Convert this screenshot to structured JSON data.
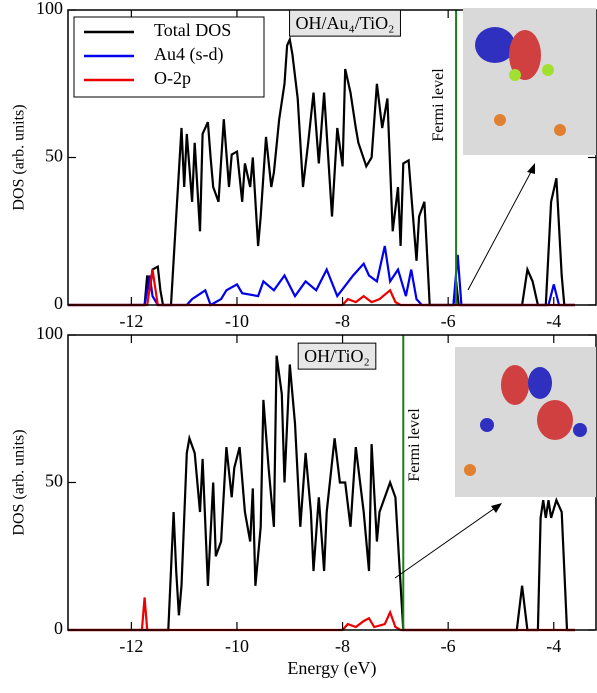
{
  "chart_data": [
    {
      "type": "line",
      "ylabel": "DOS (arb. units)",
      "annotation": "OH/Au₄/TiO₂",
      "fermi_level": -5.85,
      "fermi_label": "Fermi level",
      "fermi_color": "#1a7f1a",
      "xlim": [
        -13.2,
        -3.2
      ],
      "xticks": [
        -12,
        -10,
        -8,
        -6,
        -4
      ],
      "ylim": [
        0,
        100
      ],
      "yticks": [
        0,
        50,
        100
      ],
      "legend": "upper left",
      "series": [
        {
          "name": "Total DOS",
          "color": "#000000",
          "x": [
            -13.2,
            -11.8,
            -11.75,
            -11.7,
            -11.65,
            -11.6,
            -11.5,
            -11.45,
            -11.4,
            -11.25,
            -11.15,
            -11.05,
            -11.0,
            -10.95,
            -10.85,
            -10.8,
            -10.7,
            -10.65,
            -10.55,
            -10.5,
            -10.45,
            -10.35,
            -10.25,
            -10.15,
            -10.1,
            -10.0,
            -9.9,
            -9.85,
            -9.75,
            -9.7,
            -9.6,
            -9.55,
            -9.45,
            -9.35,
            -9.3,
            -9.2,
            -9.1,
            -9.05,
            -9.0,
            -8.95,
            -8.85,
            -8.75,
            -8.65,
            -8.55,
            -8.45,
            -8.35,
            -8.2,
            -8.1,
            -8.0,
            -7.95,
            -7.85,
            -7.75,
            -7.7,
            -7.55,
            -7.45,
            -7.35,
            -7.25,
            -7.15,
            -7.05,
            -6.95,
            -6.9,
            -6.85,
            -6.75,
            -6.6,
            -6.55,
            -6.45,
            -6.35,
            -5.9,
            -5.85,
            -5.8,
            -4.6,
            -4.5,
            -4.4,
            -4.3,
            -4.15,
            -4.05,
            -3.95,
            -3.85,
            -3.8,
            -3.6
          ],
          "values": [
            0,
            0,
            0,
            10,
            5,
            12,
            13,
            5,
            0,
            0,
            30,
            60,
            40,
            58,
            35,
            55,
            25,
            58,
            62,
            50,
            40,
            35,
            63,
            40,
            51,
            52,
            35,
            48,
            40,
            50,
            20,
            30,
            57,
            40,
            45,
            63,
            75,
            88,
            90,
            85,
            70,
            40,
            55,
            72,
            48,
            72,
            30,
            60,
            47,
            80,
            72,
            60,
            55,
            47,
            50,
            75,
            60,
            70,
            25,
            40,
            20,
            48,
            49,
            15,
            30,
            35,
            0,
            0,
            8,
            0,
            0,
            12,
            8,
            0,
            0,
            35,
            43,
            10,
            0,
            0
          ]
        },
        {
          "name": "Au4 (s-d)",
          "color": "#0000ee",
          "x": [
            -13.2,
            -11.75,
            -11.65,
            -11.6,
            -11.5,
            -10.95,
            -10.85,
            -10.6,
            -10.5,
            -10.3,
            -10.2,
            -10.0,
            -9.9,
            -9.6,
            -9.5,
            -9.3,
            -9.1,
            -8.9,
            -8.7,
            -8.5,
            -8.3,
            -8.1,
            -7.8,
            -7.6,
            -7.5,
            -7.35,
            -7.2,
            -7.1,
            -6.95,
            -6.8,
            -6.7,
            -6.6,
            -6.5,
            -5.9,
            -5.82,
            -5.75,
            -4.1,
            -4.0,
            -3.9,
            -3.6
          ],
          "values": [
            0,
            0,
            10,
            3,
            0,
            0,
            2,
            5,
            0,
            2,
            5,
            7,
            4,
            3,
            8,
            5,
            10,
            3,
            8,
            5,
            12,
            3,
            10,
            14,
            10,
            8,
            20,
            8,
            12,
            3,
            12,
            2,
            0,
            0,
            17,
            0,
            0,
            7,
            0,
            0
          ]
        },
        {
          "name": "O-2p",
          "color": "#ee0000",
          "x": [
            -13.2,
            -11.7,
            -11.6,
            -11.5,
            -8.0,
            -7.9,
            -7.75,
            -7.6,
            -7.45,
            -7.3,
            -7.1,
            -7.0,
            -6.9,
            -3.6
          ],
          "values": [
            0,
            0,
            12,
            0,
            0,
            2,
            1,
            3,
            1,
            2,
            5,
            1,
            0,
            0
          ]
        }
      ]
    },
    {
      "type": "line",
      "ylabel": "DOS (arb. units)",
      "xlabel": "Energy (eV)",
      "annotation": "OH/TiO₂",
      "fermi_level": -6.85,
      "fermi_label": "Fermi level",
      "fermi_color": "#1a7f1a",
      "xlim": [
        -13.2,
        -3.2
      ],
      "xticks": [
        -12,
        -10,
        -8,
        -6,
        -4
      ],
      "ylim": [
        0,
        100
      ],
      "yticks": [
        0,
        50,
        100
      ],
      "series": [
        {
          "color": "#000000",
          "x": [
            -13.2,
            -11.3,
            -11.2,
            -11.15,
            -11.1,
            -11.05,
            -10.95,
            -10.9,
            -10.8,
            -10.7,
            -10.65,
            -10.55,
            -10.45,
            -10.4,
            -10.3,
            -10.2,
            -10.1,
            -10.05,
            -9.95,
            -9.85,
            -9.75,
            -9.7,
            -9.65,
            -9.55,
            -9.5,
            -9.4,
            -9.3,
            -9.25,
            -9.15,
            -9.1,
            -9.0,
            -8.9,
            -8.8,
            -8.7,
            -8.6,
            -8.55,
            -8.45,
            -8.35,
            -8.3,
            -8.15,
            -8.05,
            -7.95,
            -7.85,
            -7.75,
            -7.6,
            -7.5,
            -7.45,
            -7.35,
            -7.3,
            -7.2,
            -7.1,
            -7.0,
            -6.95,
            -6.85,
            -4.7,
            -4.6,
            -4.5,
            -4.3,
            -4.25,
            -4.2,
            -4.15,
            -4.1,
            -4.05,
            -3.95,
            -3.85,
            -3.75,
            -3.6
          ],
          "values": [
            0,
            0,
            40,
            20,
            5,
            15,
            60,
            65,
            60,
            40,
            58,
            15,
            50,
            25,
            30,
            62,
            45,
            55,
            62,
            40,
            30,
            48,
            15,
            35,
            78,
            55,
            35,
            93,
            80,
            50,
            90,
            70,
            35,
            60,
            40,
            20,
            45,
            20,
            40,
            65,
            50,
            50,
            35,
            62,
            40,
            20,
            63,
            30,
            40,
            45,
            50,
            45,
            30,
            0,
            0,
            15,
            0,
            0,
            38,
            44,
            38,
            44,
            38,
            44,
            40,
            0,
            0
          ]
        },
        {
          "color": "#ee0000",
          "x": [
            -13.2,
            -11.8,
            -11.75,
            -11.7,
            -8.0,
            -7.9,
            -7.75,
            -7.6,
            -7.5,
            -7.4,
            -7.2,
            -7.1,
            -7.0,
            -6.9,
            -3.6
          ],
          "values": [
            0,
            0,
            11,
            0,
            0,
            2,
            1,
            3,
            4,
            1,
            2,
            6,
            1,
            0,
            0
          ]
        }
      ]
    }
  ]
}
